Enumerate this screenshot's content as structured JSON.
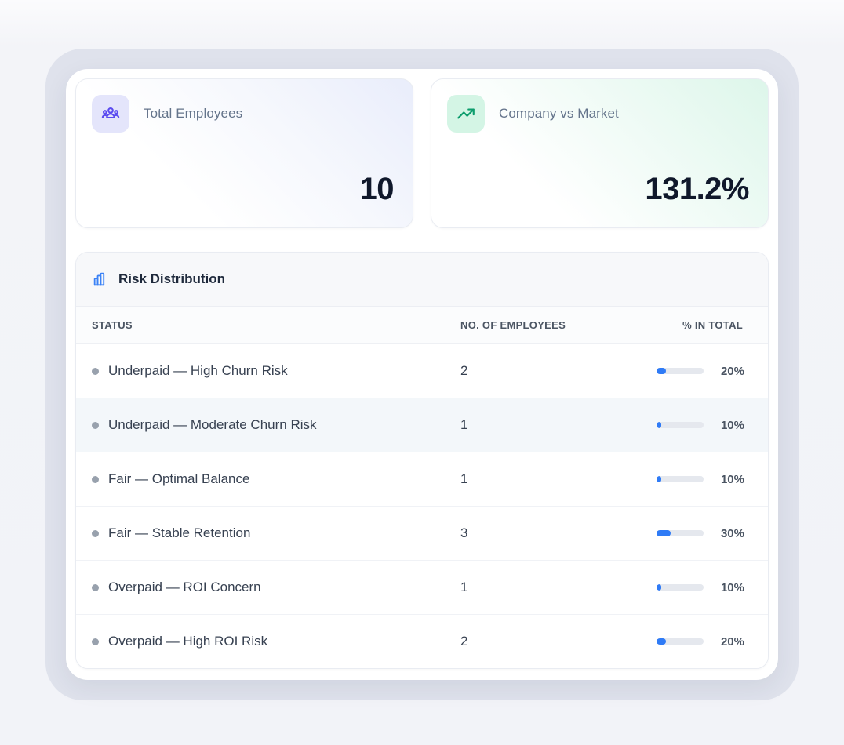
{
  "stats": [
    {
      "label": "Total Employees",
      "value": "10",
      "icon": "users-icon",
      "accent": "#5b4bf0",
      "tile_bg": "#e4e5fb",
      "gradient_tint": "#e9edfb"
    },
    {
      "label": "Company vs Market",
      "value": "131.2%",
      "icon": "trending-up-icon",
      "accent": "#0d9d6d",
      "tile_bg": "#d4f5e5",
      "gradient_tint": "#ddf6ea"
    }
  ],
  "table": {
    "icon": "bar-chart-icon",
    "title": "Risk Distribution",
    "columns": [
      "STATUS",
      "NO. OF EMPLOYEES",
      "% IN TOTAL"
    ],
    "rows": [
      {
        "status": "Underpaid — High Churn Risk",
        "employees": "2",
        "percent": 20,
        "percent_label": "20%",
        "highlighted": false
      },
      {
        "status": "Underpaid — Moderate Churn Risk",
        "employees": "1",
        "percent": 10,
        "percent_label": "10%",
        "highlighted": true
      },
      {
        "status": "Fair — Optimal Balance",
        "employees": "1",
        "percent": 10,
        "percent_label": "10%",
        "highlighted": false
      },
      {
        "status": "Fair — Stable Retention",
        "employees": "3",
        "percent": 30,
        "percent_label": "30%",
        "highlighted": false
      },
      {
        "status": "Overpaid — ROI Concern",
        "employees": "1",
        "percent": 10,
        "percent_label": "10%",
        "highlighted": false
      },
      {
        "status": "Overpaid — High ROI Risk",
        "employees": "2",
        "percent": 20,
        "percent_label": "20%",
        "highlighted": false
      }
    ],
    "progress_color": "#2f7bf6",
    "track_color": "#e5e8ee",
    "dot_color": "#98a1ad"
  },
  "colors": {
    "frame_ring": "#dfe2ec",
    "surface": "#ffffff",
    "title_bar_bg": "#f7f8fa",
    "value_text": "#10182b",
    "label_text": "#64748b",
    "table_icon_blue": "#3b82f6"
  }
}
